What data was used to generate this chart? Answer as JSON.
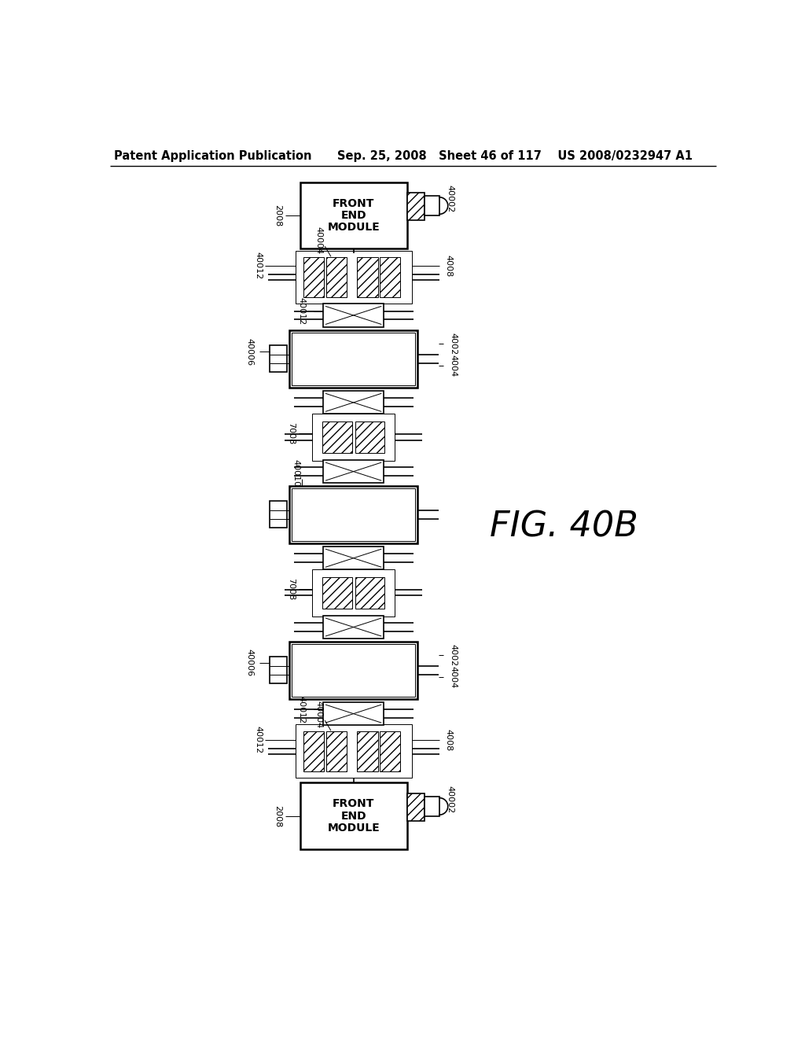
{
  "bg_color": "#ffffff",
  "header_left": "Patent Application Publication",
  "header_right": "Sep. 25, 2008   Sheet 46 of 117    US 2008/0232947 A1",
  "fig_label": "FIG. 40B",
  "header_font_size": 10.5,
  "fig_label_font_size": 32
}
